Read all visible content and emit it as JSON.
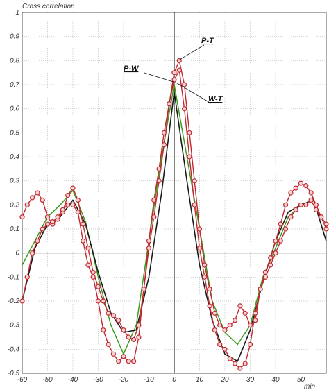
{
  "chart_data": {
    "type": "line",
    "title": "",
    "ylabel": "Cross correlation",
    "xlabel": "min",
    "xlim": [
      -60,
      60
    ],
    "ylim": [
      -0.5,
      1
    ],
    "xticks": [
      -60,
      -50,
      -40,
      -30,
      -20,
      -10,
      0,
      10,
      20,
      30,
      40,
      50
    ],
    "yticks": [
      1,
      0.9,
      0.8,
      0.7,
      0.6,
      0.5,
      0.4,
      0.3,
      0.2,
      0.1,
      0,
      -0.1,
      -0.2,
      -0.3,
      -0.4,
      -0.5
    ],
    "ytick_labels": [
      "1",
      "0.9",
      "0.8",
      "0.7",
      "0.6",
      "0.5",
      "0.4",
      "0.3",
      "0.2",
      "0.1",
      "0",
      "-0.1",
      "-0.2",
      "-0.3",
      "-0.4",
      "-0.5"
    ],
    "grid": true,
    "colors": {
      "wt": "#1a1a1a",
      "pw": "#3a9a1a",
      "pt": "#c0282f",
      "marker_fill": "#f3d3d3",
      "grid": "#bdbdbd"
    },
    "annotations": [
      {
        "label": "P-T",
        "x": 1.5,
        "y": 0.8
      },
      {
        "label": "P-W",
        "x": 0,
        "y": 0.71
      },
      {
        "label": "W-T",
        "x": 0.5,
        "y": 0.71
      }
    ],
    "series": [
      {
        "name": "W-T",
        "x": [
          -60,
          -55,
          -50,
          -45,
          -40,
          -35,
          -30,
          -25,
          -20,
          -15,
          -10,
          -5,
          0,
          5,
          10,
          15,
          20,
          25,
          30,
          35,
          40,
          45,
          50,
          55,
          60
        ],
        "values": [
          -0.2,
          0.02,
          0.12,
          0.15,
          0.22,
          0.12,
          -0.08,
          -0.25,
          -0.33,
          -0.32,
          -0.1,
          0.25,
          0.67,
          0.3,
          -0.05,
          -0.28,
          -0.42,
          -0.45,
          -0.32,
          -0.12,
          0.05,
          0.17,
          0.2,
          0.22,
          0.05
        ]
      },
      {
        "name": "P-W",
        "x": [
          -60,
          -55,
          -50,
          -45,
          -40,
          -35,
          -30,
          -25,
          -20,
          -15,
          -10,
          -5,
          0,
          5,
          10,
          15,
          20,
          25,
          30,
          35,
          40,
          45,
          50,
          55,
          60
        ],
        "values": [
          -0.05,
          0.05,
          0.15,
          0.2,
          0.26,
          0.13,
          -0.1,
          -0.3,
          -0.42,
          -0.3,
          0.05,
          0.4,
          0.7,
          0.4,
          0.1,
          -0.2,
          -0.33,
          -0.38,
          -0.3,
          -0.1,
          0.02,
          0.15,
          0.2,
          0.22,
          0.05
        ]
      },
      {
        "name": "P-T",
        "marker_sets": [
          {
            "x": [
              -60,
              -58,
              -56,
              -54,
              -52,
              -50,
              -48,
              -46,
              -44,
              -42,
              -40,
              -38,
              -36,
              -34,
              -32,
              -30,
              -28,
              -26,
              -24,
              -22,
              -20,
              -18,
              -16,
              -14,
              -12,
              -10,
              -8,
              -6,
              -4,
              -2,
              0,
              2,
              4,
              6,
              8,
              10,
              12,
              14,
              16,
              18,
              20,
              22,
              24,
              26,
              28,
              30,
              32,
              34,
              36,
              38,
              40,
              42,
              44,
              46,
              48,
              50,
              52,
              54,
              56,
              58,
              60
            ],
            "values": [
              0.15,
              0.2,
              0.23,
              0.25,
              0.22,
              0.15,
              0.12,
              0.14,
              0.17,
              0.24,
              0.27,
              0.22,
              0.12,
              0.02,
              -0.08,
              -0.14,
              -0.2,
              -0.25,
              -0.26,
              -0.28,
              -0.32,
              -0.35,
              -0.36,
              -0.3,
              -0.15,
              0.02,
              0.15,
              0.3,
              0.45,
              0.62,
              0.75,
              0.8,
              0.7,
              0.5,
              0.3,
              0.1,
              -0.05,
              -0.15,
              -0.25,
              -0.3,
              -0.32,
              -0.3,
              -0.28,
              -0.22,
              -0.25,
              -0.3,
              -0.28,
              -0.15,
              -0.1,
              -0.05,
              0,
              0.05,
              0.1,
              0.15,
              0.18,
              0.2,
              0.2,
              0.22,
              0.18,
              0.15,
              0.1
            ]
          },
          {
            "x": [
              -60,
              -58,
              -56,
              -54,
              -52,
              -50,
              -48,
              -46,
              -44,
              -42,
              -40,
              -38,
              -36,
              -34,
              -32,
              -30,
              -28,
              -26,
              -24,
              -22,
              -20,
              -18,
              -16,
              -14,
              -12,
              -10,
              -8,
              -6,
              -4,
              -2,
              0,
              2,
              4,
              6,
              8,
              10,
              12,
              14,
              16,
              18,
              20,
              22,
              24,
              26,
              28,
              30,
              32,
              34,
              36,
              38,
              40,
              42,
              44,
              46,
              48,
              50,
              52,
              54,
              56,
              58,
              60
            ],
            "values": [
              -0.2,
              -0.1,
              0,
              0.05,
              0.1,
              0.12,
              0.13,
              0.15,
              0.18,
              0.2,
              0.2,
              0.17,
              0.05,
              -0.05,
              -0.1,
              -0.2,
              -0.32,
              -0.38,
              -0.42,
              -0.45,
              -0.43,
              -0.45,
              -0.45,
              -0.35,
              -0.15,
              0.05,
              0.22,
              0.35,
              0.5,
              0.62,
              0.72,
              0.76,
              0.6,
              0.4,
              0.2,
              0.02,
              -0.1,
              -0.22,
              -0.32,
              -0.38,
              -0.4,
              -0.44,
              -0.46,
              -0.48,
              -0.46,
              -0.38,
              -0.25,
              -0.15,
              -0.08,
              -0.02,
              0.05,
              0.12,
              0.2,
              0.25,
              0.27,
              0.29,
              0.28,
              0.25,
              0.2,
              0.15,
              0.12
            ]
          }
        ]
      }
    ]
  }
}
